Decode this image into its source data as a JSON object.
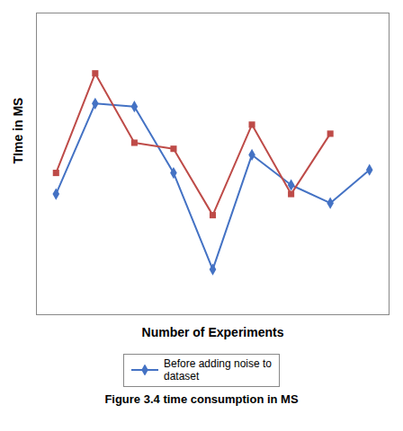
{
  "chart_data": {
    "type": "line",
    "caption": "Figure 3.4 time consumption in MS",
    "xlabel": "Number of Experiments",
    "ylabel": "TIme in MS",
    "xlim": [
      0.5,
      9.5
    ],
    "ylim": [
      1.5,
      11.5
    ],
    "xticks": [],
    "yticks": [],
    "tick_labels": false,
    "grid": false,
    "legend": "bottom",
    "series": [
      {
        "name": "Before adding noise to\ndataset",
        "color": "#4472C4",
        "marker": "diamond",
        "x": [
          1,
          2,
          3,
          4,
          5,
          6,
          7,
          8,
          9
        ],
        "values": [
          5.5,
          8.5,
          8.4,
          6.2,
          3.0,
          6.8,
          5.8,
          5.2,
          6.3
        ]
      },
      {
        "color": "#BE4B48",
        "marker": "square",
        "x": [
          1,
          2,
          3,
          4,
          5,
          6,
          7,
          8
        ],
        "values": [
          6.2,
          9.5,
          7.2,
          7.0,
          4.8,
          7.8,
          5.5,
          7.5
        ]
      }
    ]
  }
}
